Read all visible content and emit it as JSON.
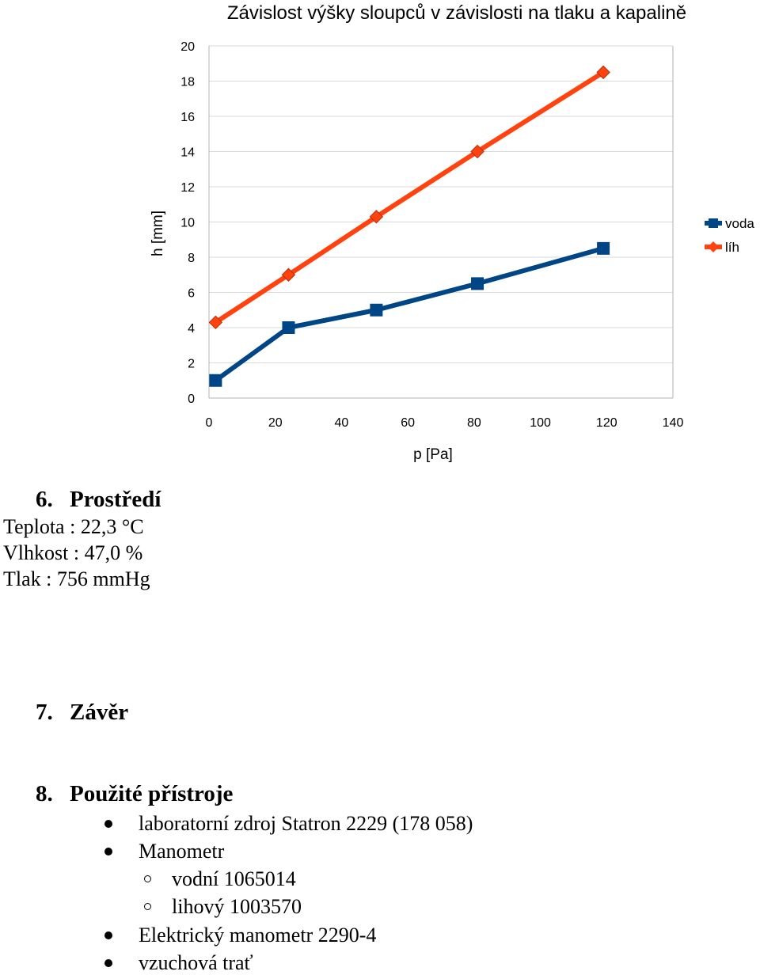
{
  "chart_data": {
    "type": "line",
    "title": "Závislost výšky sloupců v závislosti na tlaku a kapalině",
    "xlabel": "p [Pa]",
    "ylabel": "h [mm]",
    "xlim": [
      0,
      140
    ],
    "ylim": [
      0,
      20
    ],
    "x_ticks": [
      "0",
      "20",
      "40",
      "60",
      "80",
      "100",
      "120",
      "140"
    ],
    "y_ticks": [
      "0",
      "2",
      "4",
      "6",
      "8",
      "10",
      "12",
      "14",
      "16",
      "18",
      "20"
    ],
    "grid": true,
    "legend_position": "right",
    "series": [
      {
        "name": "voda",
        "color": "#004586",
        "marker": "square",
        "points": [
          [
            2,
            1
          ],
          [
            24,
            4
          ],
          [
            50.5,
            5
          ],
          [
            81,
            6.5
          ],
          [
            119,
            8.5
          ]
        ]
      },
      {
        "name": "líh",
        "color": "#ff420e",
        "marker": "diamond",
        "points": [
          [
            2,
            4.3
          ],
          [
            24,
            7
          ],
          [
            50.5,
            10.3
          ],
          [
            81,
            14
          ],
          [
            119,
            18.5
          ]
        ]
      }
    ]
  },
  "sections": {
    "environment": {
      "number": "6.",
      "title": "Prostředí",
      "lines": [
        "Teplota : 22,3 °C",
        "Vlhkost : 47,0 %",
        "Tlak : 756  mmHg"
      ]
    },
    "conclusion": {
      "number": "7.",
      "title": "Závěr"
    },
    "instruments": {
      "number": "8.",
      "title": "Použité přístroje",
      "items": [
        "laboratorní zdroj Statron 2229 (178 058)",
        "Manometr",
        "vodní 1065014",
        "lihový 1003570",
        "Elektrický manometr 2290-4",
        "vzuchová trať"
      ]
    }
  }
}
